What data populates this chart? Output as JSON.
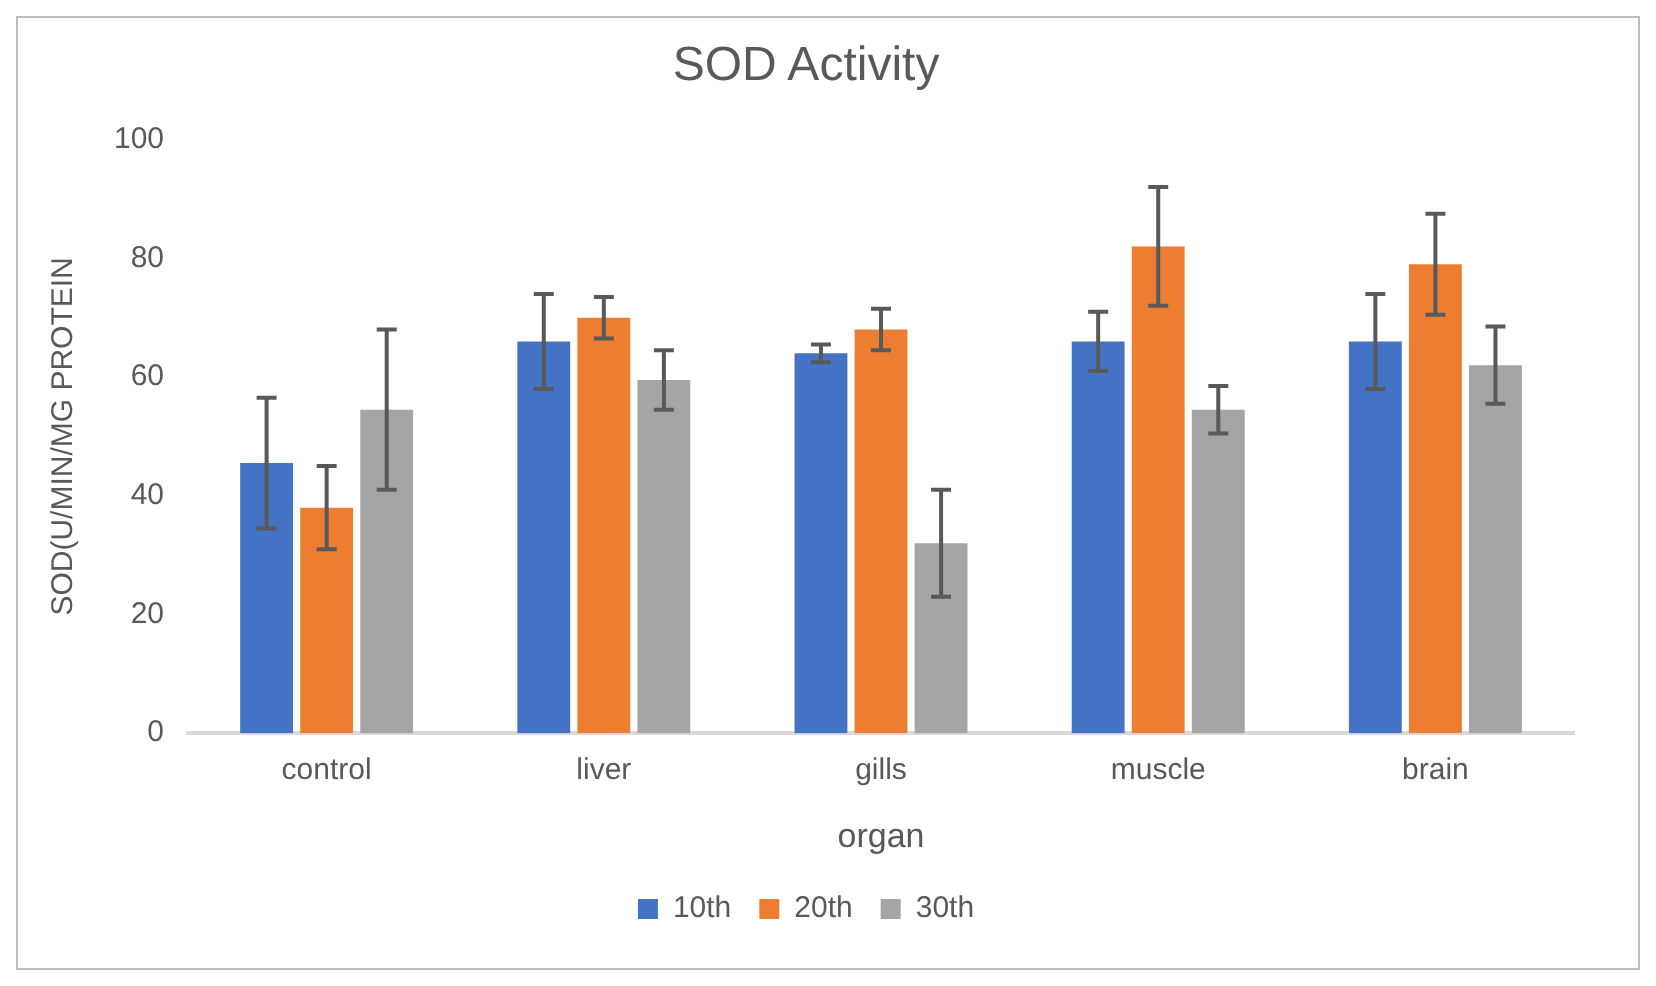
{
  "chart_data": {
    "type": "bar",
    "title": "SOD Activity",
    "xlabel": "organ",
    "ylabel": "SOD(U/MIN/MG PROTEIN",
    "categories": [
      "control",
      "liver",
      "gills",
      "muscle",
      "brain"
    ],
    "series": [
      {
        "name": "10th",
        "color": "#4472c4",
        "values": [
          45.5,
          66,
          64,
          66,
          66
        ],
        "errors": [
          11,
          8,
          1.5,
          5,
          8
        ]
      },
      {
        "name": "20th",
        "color": "#ed7d31",
        "values": [
          38,
          70,
          68,
          82,
          79
        ],
        "errors": [
          7,
          3.5,
          3.5,
          10,
          8.5
        ]
      },
      {
        "name": "30th",
        "color": "#a5a5a5",
        "values": [
          54.5,
          59.5,
          32,
          54.5,
          62
        ],
        "errors": [
          13.5,
          5,
          9,
          4,
          6.5
        ]
      }
    ],
    "ylim": [
      0,
      100
    ],
    "yticks": [
      0,
      20,
      40,
      60,
      80,
      100
    ],
    "grid": false,
    "legend": "bottom"
  }
}
